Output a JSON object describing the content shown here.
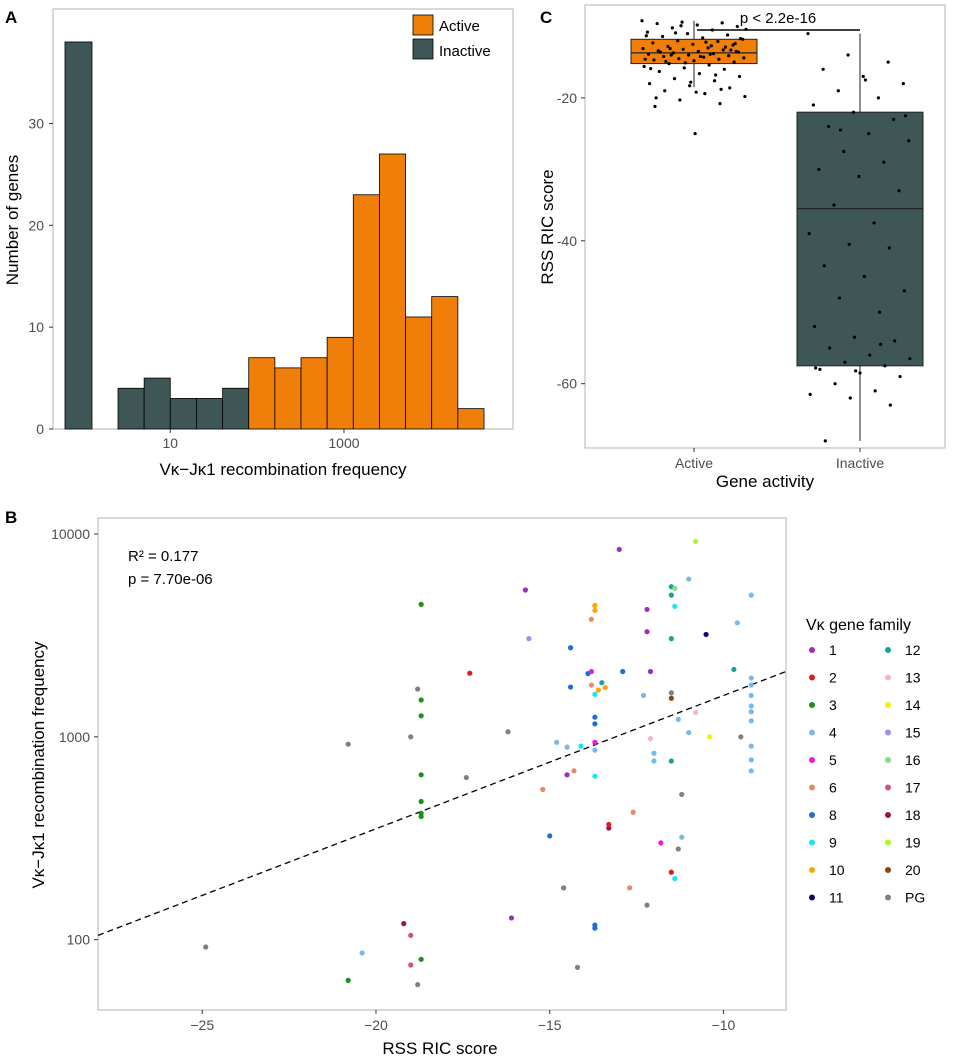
{
  "colors": {
    "active": "#F07F09",
    "inactive": "#3E5656",
    "panel_border": "#b3b3b3",
    "axis_text": "#4d4d4d",
    "text": "#000000"
  },
  "chart_data": [
    {
      "panel": "A",
      "type": "bar",
      "subtype": "histogram",
      "xscale": "log10",
      "xlabel": "Vκ−Jκ1 recombination frequency",
      "ylabel": "Number of genes",
      "ylim": [
        0,
        40
      ],
      "y_ticks": [
        0,
        10,
        20,
        30
      ],
      "x_ticks": [
        10,
        1000
      ],
      "x_tick_labels": [
        "10",
        "1000"
      ],
      "legend": {
        "position": "top-right",
        "entries": [
          "Active",
          "Inactive"
        ]
      },
      "zero_bin": {
        "series": "Inactive",
        "count": 38,
        "label": "0"
      },
      "bins": [
        {
          "from": 2.5,
          "to": 5.0,
          "count": 4,
          "series": "Inactive"
        },
        {
          "from": 5.0,
          "to": 10.0,
          "count": 5,
          "series": "Inactive"
        },
        {
          "from": 10.0,
          "to": 20.0,
          "count": 3,
          "series": "Inactive"
        },
        {
          "from": 20.0,
          "to": 40.0,
          "count": 3,
          "series": "Inactive"
        },
        {
          "from": 40.0,
          "to": 80.0,
          "count": 4,
          "series": "Inactive"
        },
        {
          "from": 80.0,
          "to": 160.0,
          "count": 7,
          "series": "Active"
        },
        {
          "from": 160.0,
          "to": 320.0,
          "count": 6,
          "series": "Active"
        },
        {
          "from": 320.0,
          "to": 640.0,
          "count": 7,
          "series": "Active"
        },
        {
          "from": 640.0,
          "to": 1280.0,
          "count": 9,
          "series": "Active"
        },
        {
          "from": 1280.0,
          "to": 2560.0,
          "count": 23,
          "series": "Active"
        },
        {
          "from": 2560.0,
          "to": 5120.0,
          "count": 27,
          "series": "Active"
        },
        {
          "from": 5120.0,
          "to": 10240.0,
          "count": 11,
          "series": "Active"
        },
        {
          "from": 10240.0,
          "to": 20480.0,
          "count": 13,
          "series": "Active"
        },
        {
          "from": 20480.0,
          "to": 40960.0,
          "count": 2,
          "series": "Active"
        }
      ]
    },
    {
      "panel": "C",
      "type": "box",
      "xlabel": "Gene activity",
      "ylabel": "RSS RIC score",
      "ylim": [
        -69,
        -7
      ],
      "y_ticks": [
        -20,
        -40,
        -60
      ],
      "categories": [
        "Active",
        "Inactive"
      ],
      "annotation": "p < 2.2e-16",
      "boxes": [
        {
          "category": "Active",
          "whisker_low": -18.5,
          "q1": -15.2,
          "median": -13.7,
          "q3": -11.8,
          "whisker_high": -9.2
        },
        {
          "category": "Inactive",
          "whisker_low": -68.0,
          "q1": -57.5,
          "median": -35.5,
          "q3": -22.0,
          "whisker_high": -11.0
        }
      ],
      "points": {
        "Active": [
          -9.2,
          -9.4,
          -9.5,
          -9.6,
          -9.8,
          -10.0,
          -10.2,
          -10.5,
          -10.8,
          -11.0,
          -11.2,
          -11.4,
          -11.6,
          -11.8,
          -12.0,
          -12.1,
          -12.3,
          -12.5,
          -12.6,
          -12.8,
          -13.0,
          -13.1,
          -13.2,
          -13.3,
          -13.4,
          -13.5,
          -13.6,
          -13.7,
          -13.8,
          -13.9,
          -14.0,
          -14.1,
          -14.2,
          -14.3,
          -14.4,
          -14.5,
          -14.6,
          -14.7,
          -14.8,
          -15.0,
          -15.2,
          -15.4,
          -15.6,
          -15.8,
          -16.0,
          -16.3,
          -16.6,
          -17.0,
          -17.3,
          -17.6,
          -18.0,
          -18.3,
          -18.6,
          -19.0,
          -19.4,
          -19.8,
          -20.3,
          -20.8,
          -21.2,
          -25.0,
          -12.4,
          -13.1,
          -13.9,
          -14.6,
          -15.1,
          -12.9,
          -13.6,
          -14.2,
          -11.7,
          -10.9,
          -16.8,
          -15.9,
          -17.8,
          -13.3,
          -14.9,
          -12.2,
          -10.4,
          -9.9,
          -18.8,
          -20.0,
          -19.2,
          -13.5,
          -14.0,
          -12.7,
          -11.3
        ],
        "Inactive": [
          -11.0,
          -14.0,
          -15.0,
          -16.0,
          -17.0,
          -18.0,
          -19.0,
          -20.0,
          -21.0,
          -22.0,
          -23.0,
          -24.0,
          -25.0,
          -26.0,
          -27.5,
          -29.0,
          -30.0,
          -31.0,
          -33.0,
          -35.0,
          -37.5,
          -39.0,
          -40.5,
          -41.0,
          -43.5,
          -45.0,
          -47.0,
          -48.0,
          -50.0,
          -52.0,
          -53.5,
          -54.0,
          -55.0,
          -56.0,
          -56.5,
          -57.0,
          -57.5,
          -58.0,
          -58.5,
          -59.0,
          -60.0,
          -61.0,
          -61.5,
          -62.0,
          -63.0,
          -68.0,
          -17.5,
          -22.5,
          -24.5,
          -54.5,
          -57.8,
          -58.2
        ]
      }
    },
    {
      "panel": "B",
      "type": "scatter",
      "xlabel": "RSS RIC score",
      "ylabel": "Vκ−Jκ1 recombination frequency",
      "yscale": "log10",
      "xlim": [
        -28,
        -8.2
      ],
      "ylim": [
        45,
        12000
      ],
      "x_ticks": [
        -25,
        -20,
        -15,
        -10
      ],
      "x_tick_labels": [
        "−25",
        "−20",
        "−15",
        "−10"
      ],
      "y_ticks": [
        100,
        1000,
        10000
      ],
      "y_tick_labels": [
        "100",
        "1000",
        "10000"
      ],
      "fit_line": {
        "x": [
          -28,
          -8.2
        ],
        "y": [
          105,
          2100
        ],
        "style": "dashed"
      },
      "stats": {
        "r2": "R² = 0.177",
        "p": "p = 7.70e-06"
      },
      "legend": {
        "title": "Vκ gene family",
        "entries": [
          {
            "label": "1",
            "color": "#9E2BC3"
          },
          {
            "label": "2",
            "color": "#E31A1C"
          },
          {
            "label": "3",
            "color": "#1F8E1F"
          },
          {
            "label": "4",
            "color": "#7AB8E8"
          },
          {
            "label": "5",
            "color": "#F016E6"
          },
          {
            "label": "6",
            "color": "#E8896A"
          },
          {
            "label": "8",
            "color": "#1A6FD6"
          },
          {
            "label": "9",
            "color": "#19E6F0"
          },
          {
            "label": "10",
            "color": "#FFA500"
          },
          {
            "label": "11",
            "color": "#0A0A6E"
          },
          {
            "label": "12",
            "color": "#17A398"
          },
          {
            "label": "13",
            "color": "#F4B6C2"
          },
          {
            "label": "14",
            "color": "#F5F00A"
          },
          {
            "label": "15",
            "color": "#A98BF0"
          },
          {
            "label": "16",
            "color": "#7FE08A"
          },
          {
            "label": "17",
            "color": "#D2527F"
          },
          {
            "label": "18",
            "color": "#9E1640"
          },
          {
            "label": "19",
            "color": "#B5F523"
          },
          {
            "label": "20",
            "color": "#8B4513"
          },
          {
            "label": "PG",
            "color": "#808080"
          }
        ]
      },
      "points": [
        {
          "x": -24.9,
          "y": 92,
          "family": "PG"
        },
        {
          "x": -20.8,
          "y": 920,
          "family": "PG"
        },
        {
          "x": -20.8,
          "y": 63,
          "family": "3"
        },
        {
          "x": -20.4,
          "y": 86,
          "family": "4"
        },
        {
          "x": -19.2,
          "y": 120,
          "family": "18"
        },
        {
          "x": -19.0,
          "y": 1000,
          "family": "PG"
        },
        {
          "x": -19.0,
          "y": 105,
          "family": "17"
        },
        {
          "x": -19.0,
          "y": 75,
          "family": "17"
        },
        {
          "x": -18.8,
          "y": 1720,
          "family": "PG"
        },
        {
          "x": -18.7,
          "y": 4500,
          "family": "3"
        },
        {
          "x": -18.7,
          "y": 1520,
          "family": "3"
        },
        {
          "x": -18.7,
          "y": 1270,
          "family": "3"
        },
        {
          "x": -18.7,
          "y": 650,
          "family": "3"
        },
        {
          "x": -18.7,
          "y": 480,
          "family": "3"
        },
        {
          "x": -18.7,
          "y": 420,
          "family": "3"
        },
        {
          "x": -18.7,
          "y": 405,
          "family": "3"
        },
        {
          "x": -18.7,
          "y": 80,
          "family": "3"
        },
        {
          "x": -18.8,
          "y": 60,
          "family": "PG"
        },
        {
          "x": -17.4,
          "y": 630,
          "family": "PG"
        },
        {
          "x": -17.3,
          "y": 2060,
          "family": "2"
        },
        {
          "x": -16.2,
          "y": 1060,
          "family": "PG"
        },
        {
          "x": -16.1,
          "y": 128,
          "family": "1"
        },
        {
          "x": -15.7,
          "y": 5300,
          "family": "1"
        },
        {
          "x": -15.6,
          "y": 3050,
          "family": "15"
        },
        {
          "x": -15.2,
          "y": 550,
          "family": "6"
        },
        {
          "x": -15.0,
          "y": 325,
          "family": "8"
        },
        {
          "x": -14.8,
          "y": 940,
          "family": "4"
        },
        {
          "x": -14.6,
          "y": 180,
          "family": "PG"
        },
        {
          "x": -14.5,
          "y": 890,
          "family": "4"
        },
        {
          "x": -14.4,
          "y": 2750,
          "family": "8"
        },
        {
          "x": -14.4,
          "y": 1760,
          "family": "8"
        },
        {
          "x": -14.3,
          "y": 680,
          "family": "6"
        },
        {
          "x": -14.2,
          "y": 73,
          "family": "PG"
        },
        {
          "x": -14.5,
          "y": 650,
          "family": "1"
        },
        {
          "x": -13.9,
          "y": 2050,
          "family": "8"
        },
        {
          "x": -13.8,
          "y": 2100,
          "family": "5"
        },
        {
          "x": -13.8,
          "y": 1800,
          "family": "6"
        },
        {
          "x": -13.7,
          "y": 1620,
          "family": "9"
        },
        {
          "x": -13.7,
          "y": 1250,
          "family": "8"
        },
        {
          "x": -13.7,
          "y": 1160,
          "family": "8"
        },
        {
          "x": -13.7,
          "y": 940,
          "family": "5"
        },
        {
          "x": -13.7,
          "y": 860,
          "family": "4"
        },
        {
          "x": -13.7,
          "y": 640,
          "family": "9"
        },
        {
          "x": -13.8,
          "y": 3800,
          "family": "6"
        },
        {
          "x": -13.7,
          "y": 4200,
          "family": "10"
        },
        {
          "x": -13.7,
          "y": 4450,
          "family": "10"
        },
        {
          "x": -13.6,
          "y": 1700,
          "family": "10"
        },
        {
          "x": -13.5,
          "y": 1850,
          "family": "12"
        },
        {
          "x": -13.4,
          "y": 1750,
          "family": "10"
        },
        {
          "x": -13.7,
          "y": 118,
          "family": "8"
        },
        {
          "x": -13.7,
          "y": 114,
          "family": "8"
        },
        {
          "x": -13.3,
          "y": 355,
          "family": "18"
        },
        {
          "x": -13.3,
          "y": 370,
          "family": "2"
        },
        {
          "x": -13.0,
          "y": 8400,
          "family": "1"
        },
        {
          "x": -12.9,
          "y": 2100,
          "family": "8"
        },
        {
          "x": -12.7,
          "y": 180,
          "family": "6"
        },
        {
          "x": -12.6,
          "y": 425,
          "family": "6"
        },
        {
          "x": -12.3,
          "y": 1600,
          "family": "4"
        },
        {
          "x": -12.2,
          "y": 4250,
          "family": "1"
        },
        {
          "x": -12.2,
          "y": 3300,
          "family": "1"
        },
        {
          "x": -12.1,
          "y": 2100,
          "family": "1"
        },
        {
          "x": -12.1,
          "y": 980,
          "family": "13"
        },
        {
          "x": -12.0,
          "y": 830,
          "family": "4"
        },
        {
          "x": -12.0,
          "y": 760,
          "family": "4"
        },
        {
          "x": -12.2,
          "y": 148,
          "family": "PG"
        },
        {
          "x": -11.8,
          "y": 300,
          "family": "5"
        },
        {
          "x": -11.5,
          "y": 5500,
          "family": "12"
        },
        {
          "x": -11.5,
          "y": 5000,
          "family": "12"
        },
        {
          "x": -11.5,
          "y": 3050,
          "family": "12"
        },
        {
          "x": -11.5,
          "y": 1650,
          "family": "PG"
        },
        {
          "x": -11.5,
          "y": 1550,
          "family": "20"
        },
        {
          "x": -11.5,
          "y": 760,
          "family": "12"
        },
        {
          "x": -11.5,
          "y": 215,
          "family": "2"
        },
        {
          "x": -11.4,
          "y": 4400,
          "family": "9"
        },
        {
          "x": -11.4,
          "y": 5400,
          "family": "16"
        },
        {
          "x": -11.3,
          "y": 1220,
          "family": "4"
        },
        {
          "x": -11.2,
          "y": 520,
          "family": "PG"
        },
        {
          "x": -11.2,
          "y": 320,
          "family": "4"
        },
        {
          "x": -11.3,
          "y": 280,
          "family": "PG"
        },
        {
          "x": -11.4,
          "y": 200,
          "family": "9"
        },
        {
          "x": -11.0,
          "y": 6000,
          "family": "4"
        },
        {
          "x": -11.0,
          "y": 1050,
          "family": "4"
        },
        {
          "x": -10.8,
          "y": 9200,
          "family": "19"
        },
        {
          "x": -10.8,
          "y": 1320,
          "family": "13"
        },
        {
          "x": -10.5,
          "y": 3200,
          "family": "11"
        },
        {
          "x": -10.4,
          "y": 1000,
          "family": "14"
        },
        {
          "x": -9.7,
          "y": 2150,
          "family": "12"
        },
        {
          "x": -9.6,
          "y": 3650,
          "family": "4"
        },
        {
          "x": -9.5,
          "y": 1000,
          "family": "PG"
        },
        {
          "x": -9.2,
          "y": 5000,
          "family": "4"
        },
        {
          "x": -9.2,
          "y": 1950,
          "family": "4"
        },
        {
          "x": -9.2,
          "y": 1800,
          "family": "4"
        },
        {
          "x": -9.2,
          "y": 1600,
          "family": "4"
        },
        {
          "x": -9.2,
          "y": 1420,
          "family": "4"
        },
        {
          "x": -9.2,
          "y": 1330,
          "family": "4"
        },
        {
          "x": -9.2,
          "y": 1200,
          "family": "4"
        },
        {
          "x": -9.2,
          "y": 900,
          "family": "4"
        },
        {
          "x": -9.2,
          "y": 770,
          "family": "4"
        },
        {
          "x": -9.2,
          "y": 680,
          "family": "4"
        },
        {
          "x": -14.1,
          "y": 900,
          "family": "9"
        }
      ]
    }
  ],
  "panel_labels": {
    "a": "A",
    "b": "B",
    "c": "C"
  },
  "legend_a": {
    "active": "Active",
    "inactive": "Inactive"
  },
  "labels": {
    "a_xlabel": "Vκ−Jκ1 recombination frequency",
    "a_ylabel": "Number of genes",
    "c_xlabel": "Gene activity",
    "c_ylabel": "RSS RIC score",
    "c_annotation": "p < 2.2e-16",
    "b_xlabel": "RSS RIC score",
    "b_ylabel": "Vκ−Jκ1 recombination frequency",
    "b_r2": "R² = 0.177",
    "b_p": "p = 7.70e-06",
    "b_legend_title": "Vκ gene family"
  }
}
